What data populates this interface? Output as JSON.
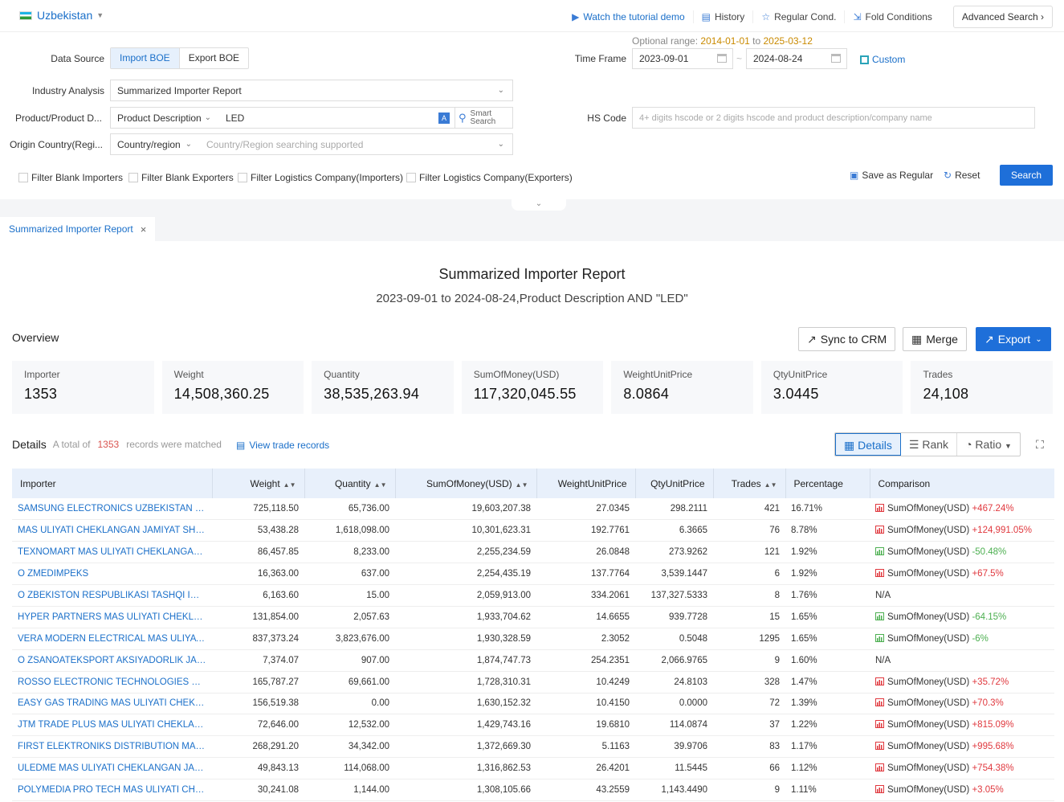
{
  "header": {
    "country": "Uzbekistan",
    "links": [
      {
        "label": "Watch the tutorial demo",
        "icon": "play-icon"
      },
      {
        "label": "History",
        "icon": "history-icon"
      },
      {
        "label": "Regular Cond.",
        "icon": "star-icon"
      },
      {
        "label": "Fold Conditions",
        "icon": "fold-icon"
      }
    ],
    "advanced_search": "Advanced Search"
  },
  "form": {
    "data_source_label": "Data Source",
    "data_source_options": [
      "Import BOE",
      "Export BOE"
    ],
    "industry_label": "Industry Analysis",
    "industry_value": "Summarized Importer Report",
    "product_label": "Product/Product D...",
    "product_type": "Product Description",
    "product_value": "LED",
    "smart_search": [
      "Smart",
      "Search"
    ],
    "origin_label": "Origin Country(Regi...",
    "origin_type": "Country/region",
    "origin_placeholder": "Country/Region searching supported",
    "optional_prefix": "Optional range:",
    "optional_from": "2014-01-01",
    "optional_to_word": "to",
    "optional_to": "2025-03-12",
    "time_label": "Time Frame",
    "date_from": "2023-09-01",
    "date_to": "2024-08-24",
    "custom": "Custom",
    "hs_label": "HS Code",
    "hs_placeholder": "4+ digits hscode or 2 digits hscode and product description/company name",
    "filters": [
      "Filter Blank Importers",
      "Filter Blank Exporters",
      "Filter Logistics Company(Importers)",
      "Filter Logistics Company(Exporters)"
    ],
    "save_regular": "Save as Regular",
    "reset": "Reset",
    "search": "Search"
  },
  "tab": {
    "label": "Summarized Importer Report"
  },
  "report": {
    "title": "Summarized Importer Report",
    "subtitle": "2023-09-01 to 2024-08-24,Product Description AND \"LED\"",
    "overview": "Overview",
    "sync_crm": "Sync to CRM",
    "merge": "Merge",
    "export": "Export",
    "stats": [
      {
        "label": "Importer",
        "value": "1353"
      },
      {
        "label": "Weight",
        "value": "14,508,360.25"
      },
      {
        "label": "Quantity",
        "value": "38,535,263.94"
      },
      {
        "label": "SumOfMoney(USD)",
        "value": "117,320,045.55"
      },
      {
        "label": "WeightUnitPrice",
        "value": "8.0864"
      },
      {
        "label": "QtyUnitPrice",
        "value": "3.0445"
      },
      {
        "label": "Trades",
        "value": "24,108"
      }
    ],
    "details_title": "Details",
    "details_prefix": "A total of",
    "details_count": "1353",
    "details_suffix": "records were matched",
    "view_trade": "View trade records",
    "views": [
      "Details",
      "Rank",
      "Ratio"
    ]
  },
  "table": {
    "columns": [
      "Importer",
      "Weight",
      "Quantity",
      "SumOfMoney(USD)",
      "WeightUnitPrice",
      "QtyUnitPrice",
      "Trades",
      "Percentage",
      "Comparison"
    ],
    "rows": [
      {
        "importer": "SAMSUNG ELECTRONICS UZBEKISTAN MAS ...",
        "weight": "725,118.50",
        "quantity": "65,736.00",
        "sum": "19,603,207.38",
        "wup": "27.0345",
        "qup": "298.2111",
        "trades": "421",
        "pct": "16.71%",
        "cmp_label": "SumOfMoney(USD)",
        "cmp": "+467.24%",
        "dir": "up"
      },
      {
        "importer": "MAS ULIYATI CHEKLANGAN JAMIYAT SHAK...",
        "weight": "53,438.28",
        "quantity": "1,618,098.00",
        "sum": "10,301,623.31",
        "wup": "192.7761",
        "qup": "6.3665",
        "trades": "76",
        "pct": "8.78%",
        "cmp_label": "SumOfMoney(USD)",
        "cmp": "+124,991.05%",
        "dir": "up"
      },
      {
        "importer": "TEXNOMART MAS ULIYATI CHEKLANGAN JA...",
        "weight": "86,457.85",
        "quantity": "8,233.00",
        "sum": "2,255,234.59",
        "wup": "26.0848",
        "qup": "273.9262",
        "trades": "121",
        "pct": "1.92%",
        "cmp_label": "SumOfMoney(USD)",
        "cmp": "-50.48%",
        "dir": "down"
      },
      {
        "importer": "O ZMEDIMPEKS",
        "weight": "16,363.00",
        "quantity": "637.00",
        "sum": "2,254,435.19",
        "wup": "137.7764",
        "qup": "3,539.1447",
        "trades": "6",
        "pct": "1.92%",
        "cmp_label": "SumOfMoney(USD)",
        "cmp": "+67.5%",
        "dir": "up"
      },
      {
        "importer": "O ZBEKISTON RESPUBLIKASI TASHQI IQTIS...",
        "weight": "6,163.60",
        "quantity": "15.00",
        "sum": "2,059,913.00",
        "wup": "334.2061",
        "qup": "137,327.5333",
        "trades": "8",
        "pct": "1.76%",
        "cmp_label": "",
        "cmp": "N/A",
        "dir": "none"
      },
      {
        "importer": "HYPER PARTNERS MAS ULIYATI CHEKLANG...",
        "weight": "131,854.00",
        "quantity": "2,057.63",
        "sum": "1,933,704.62",
        "wup": "14.6655",
        "qup": "939.7728",
        "trades": "15",
        "pct": "1.65%",
        "cmp_label": "SumOfMoney(USD)",
        "cmp": "-64.15%",
        "dir": "down"
      },
      {
        "importer": "VERA MODERN ELECTRICAL MAS ULIYATI C...",
        "weight": "837,373.24",
        "quantity": "3,823,676.00",
        "sum": "1,930,328.59",
        "wup": "2.3052",
        "qup": "0.5048",
        "trades": "1295",
        "pct": "1.65%",
        "cmp_label": "SumOfMoney(USD)",
        "cmp": "-6%",
        "dir": "down"
      },
      {
        "importer": "O ZSANOATEKSPORT AKSIYADORLIK JAMIY...",
        "weight": "7,374.07",
        "quantity": "907.00",
        "sum": "1,874,747.73",
        "wup": "254.2351",
        "qup": "2,066.9765",
        "trades": "9",
        "pct": "1.60%",
        "cmp_label": "",
        "cmp": "N/A",
        "dir": "none"
      },
      {
        "importer": "ROSSO ELECTRONIC TECHNOLOGIES MAS U...",
        "weight": "165,787.27",
        "quantity": "69,661.00",
        "sum": "1,728,310.31",
        "wup": "10.4249",
        "qup": "24.8103",
        "trades": "328",
        "pct": "1.47%",
        "cmp_label": "SumOfMoney(USD)",
        "cmp": "+35.72%",
        "dir": "up"
      },
      {
        "importer": "EASY GAS TRADING MAS ULIYATI CHEKLAN...",
        "weight": "156,519.38",
        "quantity": "0.00",
        "sum": "1,630,152.32",
        "wup": "10.4150",
        "qup": "0.0000",
        "trades": "72",
        "pct": "1.39%",
        "cmp_label": "SumOfMoney(USD)",
        "cmp": "+70.3%",
        "dir": "up"
      },
      {
        "importer": "JTM TRADE PLUS MAS ULIYATI CHEKLANGA...",
        "weight": "72,646.00",
        "quantity": "12,532.00",
        "sum": "1,429,743.16",
        "wup": "19.6810",
        "qup": "114.0874",
        "trades": "37",
        "pct": "1.22%",
        "cmp_label": "SumOfMoney(USD)",
        "cmp": "+815.09%",
        "dir": "up"
      },
      {
        "importer": "FIRST ELEKTRONIKS DISTRIBUTION MAS UL...",
        "weight": "268,291.20",
        "quantity": "34,342.00",
        "sum": "1,372,669.30",
        "wup": "5.1163",
        "qup": "39.9706",
        "trades": "83",
        "pct": "1.17%",
        "cmp_label": "SumOfMoney(USD)",
        "cmp": "+995.68%",
        "dir": "up"
      },
      {
        "importer": "ULEDME MAS ULIYATI CHEKLANGAN JAMIY...",
        "weight": "49,843.13",
        "quantity": "114,068.00",
        "sum": "1,316,862.53",
        "wup": "26.4201",
        "qup": "11.5445",
        "trades": "66",
        "pct": "1.12%",
        "cmp_label": "SumOfMoney(USD)",
        "cmp": "+754.38%",
        "dir": "up"
      },
      {
        "importer": "POLYMEDIA PRO TECH MAS ULIYATI CHEKL...",
        "weight": "30,241.08",
        "quantity": "1,144.00",
        "sum": "1,308,105.66",
        "wup": "43.2559",
        "qup": "1,143.4490",
        "trades": "9",
        "pct": "1.11%",
        "cmp_label": "SumOfMoney(USD)",
        "cmp": "+3.05%",
        "dir": "up"
      }
    ]
  },
  "colors": {
    "accent": "#1e6fd9",
    "up": "#e0383e",
    "down": "#4caf50",
    "count": "#d9534f"
  }
}
